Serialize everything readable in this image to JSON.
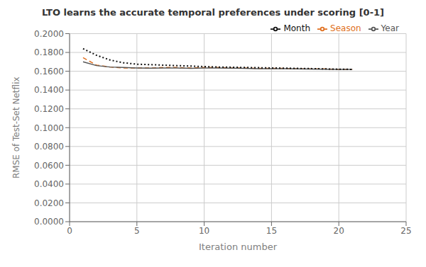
{
  "chart_data": {
    "type": "line",
    "title": "LTO learns the accurate temporal preferences under scoring [0-1]",
    "xlabel": "Iteration number",
    "ylabel": "RMSE of Test-Set Netflix",
    "x": [
      1,
      2,
      3,
      4,
      5,
      6,
      7,
      8,
      9,
      10,
      11,
      12,
      13,
      14,
      15,
      16,
      17,
      18,
      19,
      20,
      21
    ],
    "series": [
      {
        "name": "Season",
        "color": "#e07020",
        "line_style": "dashed",
        "values": [
          0.1745,
          0.1665,
          0.1645,
          0.1635,
          0.1635,
          0.1635,
          0.164,
          0.164,
          0.1635,
          0.164,
          0.164,
          0.1635,
          0.1635,
          0.163,
          0.163,
          0.163,
          0.1625,
          0.1625,
          0.1625,
          0.162,
          0.162
        ]
      },
      {
        "name": "Year",
        "color": "#555555",
        "line_style": "solid",
        "values": [
          0.17,
          0.166,
          0.1645,
          0.164,
          0.1635,
          0.1632,
          0.1635,
          0.1635,
          0.163,
          0.1635,
          0.1635,
          0.1632,
          0.163,
          0.1628,
          0.1628,
          0.1628,
          0.1625,
          0.1623,
          0.1622,
          0.162,
          0.162
        ]
      },
      {
        "name": "Month",
        "color": "#111111",
        "line_style": "dotted",
        "values": [
          0.184,
          0.177,
          0.172,
          0.169,
          0.1675,
          0.167,
          0.1665,
          0.166,
          0.1655,
          0.165,
          0.1645,
          0.1643,
          0.164,
          0.1638,
          0.1635,
          0.1633,
          0.163,
          0.1628,
          0.1625,
          0.1622,
          0.162
        ]
      }
    ],
    "xlim": [
      0,
      25
    ],
    "xticks": [
      0,
      5,
      10,
      15,
      20,
      25
    ],
    "ylim": [
      0.0,
      0.2
    ],
    "yticks": [
      {
        "value": 0.0,
        "label": "0.0000"
      },
      {
        "value": 0.02,
        "label": "0.0200"
      },
      {
        "value": 0.04,
        "label": "0.0400"
      },
      {
        "value": 0.06,
        "label": "0.0600"
      },
      {
        "value": 0.08,
        "label": "0.0800"
      },
      {
        "value": 0.1,
        "label": "0.1000"
      },
      {
        "value": 0.12,
        "label": "0.1200"
      },
      {
        "value": 0.14,
        "label": "0.1400"
      },
      {
        "value": 0.16,
        "label": "0.1600"
      },
      {
        "value": 0.18,
        "label": "0.1800"
      },
      {
        "value": 0.2,
        "label": "0.2000"
      }
    ],
    "grid": true,
    "legend": "upper right"
  }
}
